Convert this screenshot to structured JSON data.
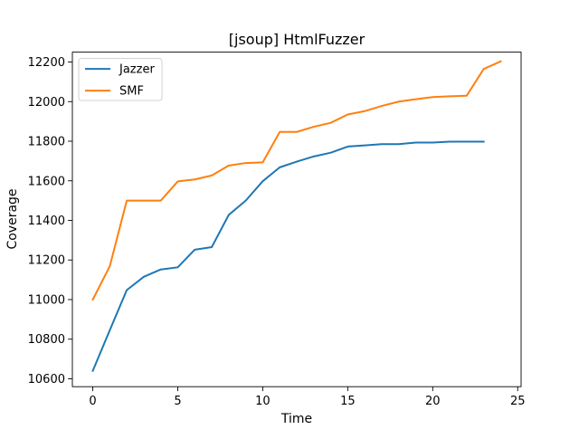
{
  "chart_data": {
    "type": "line",
    "title": "[jsoup] HtmlFuzzer",
    "xlabel": "Time",
    "ylabel": "Coverage",
    "xlim": [
      -1.2,
      25.2
    ],
    "ylim": [
      10560,
      12250
    ],
    "x_ticks": [
      0,
      5,
      10,
      15,
      20,
      25
    ],
    "y_ticks": [
      10600,
      10800,
      11000,
      11200,
      11400,
      11600,
      11800,
      12000,
      12200
    ],
    "x_tick_labels": [
      "0",
      "5",
      "10",
      "15",
      "20",
      "25"
    ],
    "y_tick_labels": [
      "10600",
      "10800",
      "11000",
      "11200",
      "11400",
      "11600",
      "11800",
      "12000",
      "12200"
    ],
    "grid": false,
    "legend_position": "top-left",
    "series": [
      {
        "name": "Jazzer",
        "color": "#1f77b4",
        "x": [
          0,
          1,
          2,
          3,
          4,
          5,
          6,
          7,
          8,
          9,
          10,
          11,
          12,
          13,
          14,
          15,
          16,
          17,
          18,
          19,
          20,
          21,
          22,
          23
        ],
        "values": [
          10640,
          10845,
          11048,
          11115,
          11152,
          11163,
          11252,
          11265,
          11428,
          11500,
          11598,
          11668,
          11697,
          11723,
          11742,
          11773,
          11779,
          11785,
          11785,
          11793,
          11793,
          11798,
          11798,
          11798
        ]
      },
      {
        "name": "SMF",
        "color": "#ff7f0e",
        "x": [
          0,
          1,
          2,
          3,
          4,
          5,
          6,
          7,
          8,
          9,
          10,
          11,
          12,
          13,
          14,
          15,
          16,
          17,
          18,
          19,
          20,
          21,
          22,
          23,
          24
        ],
        "values": [
          11000,
          11168,
          11500,
          11500,
          11500,
          11597,
          11607,
          11627,
          11677,
          11690,
          11693,
          11847,
          11847,
          11873,
          11893,
          11935,
          11952,
          11978,
          12000,
          12012,
          12023,
          12027,
          12030,
          12165,
          12203
        ]
      }
    ]
  }
}
